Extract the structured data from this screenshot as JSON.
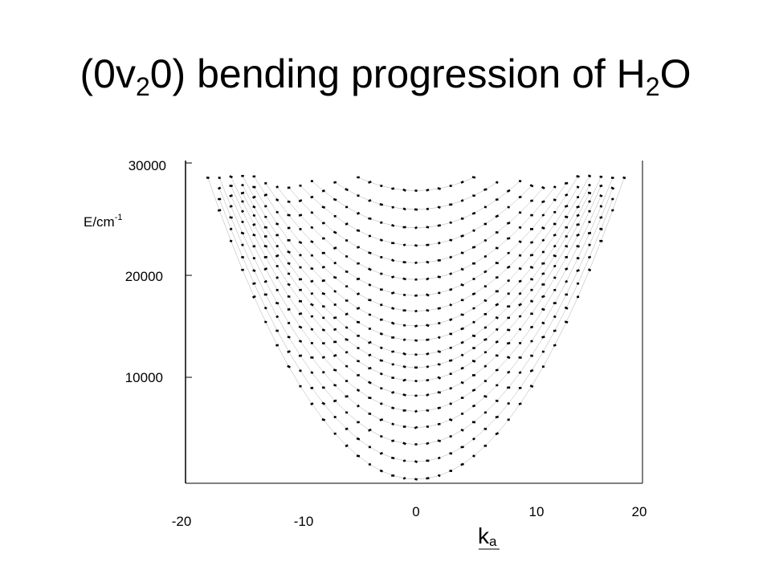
{
  "title": {
    "pre": "(0v",
    "sub1": "2",
    "mid": "0) bending progression of H",
    "sub2": "2",
    "post": "O"
  },
  "chart_data": {
    "type": "scatter",
    "title": "(0v20) bending progression of H2O",
    "xlabel": {
      "main": "k",
      "sub": "a"
    },
    "ylabel": {
      "main": "E/cm",
      "sup": "-1"
    },
    "xlim": [
      -20,
      20
    ],
    "ylim": [
      0,
      30000
    ],
    "x_ticks": [
      -20,
      -10,
      0,
      10,
      20
    ],
    "x_tick_labels": [
      "-20",
      "-10",
      "0",
      "10",
      "20"
    ],
    "y_ticks": [
      10000,
      20000,
      30000
    ],
    "y_tick_labels": [
      "10000",
      "20000",
      "30000"
    ],
    "grid": false,
    "legend": "none",
    "ka_range": [
      -19,
      19
    ],
    "series": [
      {
        "v2": 0,
        "E0": 0,
        "A": 84
      },
      {
        "v2": 1,
        "E0": 1595,
        "A": 82
      },
      {
        "v2": 2,
        "E0": 3152,
        "A": 80
      },
      {
        "v2": 3,
        "E0": 4667,
        "A": 78
      },
      {
        "v2": 4,
        "E0": 6134,
        "A": 76
      },
      {
        "v2": 5,
        "E0": 7542,
        "A": 74
      },
      {
        "v2": 6,
        "E0": 8870,
        "A": 72
      },
      {
        "v2": 7,
        "E0": 10090,
        "A": 70
      },
      {
        "v2": 8,
        "E0": 11250,
        "A": 68
      },
      {
        "v2": 9,
        "E0": 12530,
        "A": 66
      },
      {
        "v2": 10,
        "E0": 13830,
        "A": 64
      },
      {
        "v2": 11,
        "E0": 15180,
        "A": 62
      },
      {
        "v2": 12,
        "E0": 16580,
        "A": 60
      },
      {
        "v2": 13,
        "E0": 18030,
        "A": 58
      },
      {
        "v2": 14,
        "E0": 19540,
        "A": 56
      },
      {
        "v2": 15,
        "E0": 21100,
        "A": 54
      },
      {
        "v2": 16,
        "E0": 22700,
        "A": 52
      },
      {
        "v2": 17,
        "E0": 24350,
        "A": 50
      },
      {
        "v2": 18,
        "E0": 26050,
        "A": 48
      },
      {
        "v2": 19,
        "E0": 27750,
        "A": 46
      }
    ],
    "colors": {
      "points": "#000000",
      "axis": "#000000",
      "guides": "#555555"
    }
  }
}
